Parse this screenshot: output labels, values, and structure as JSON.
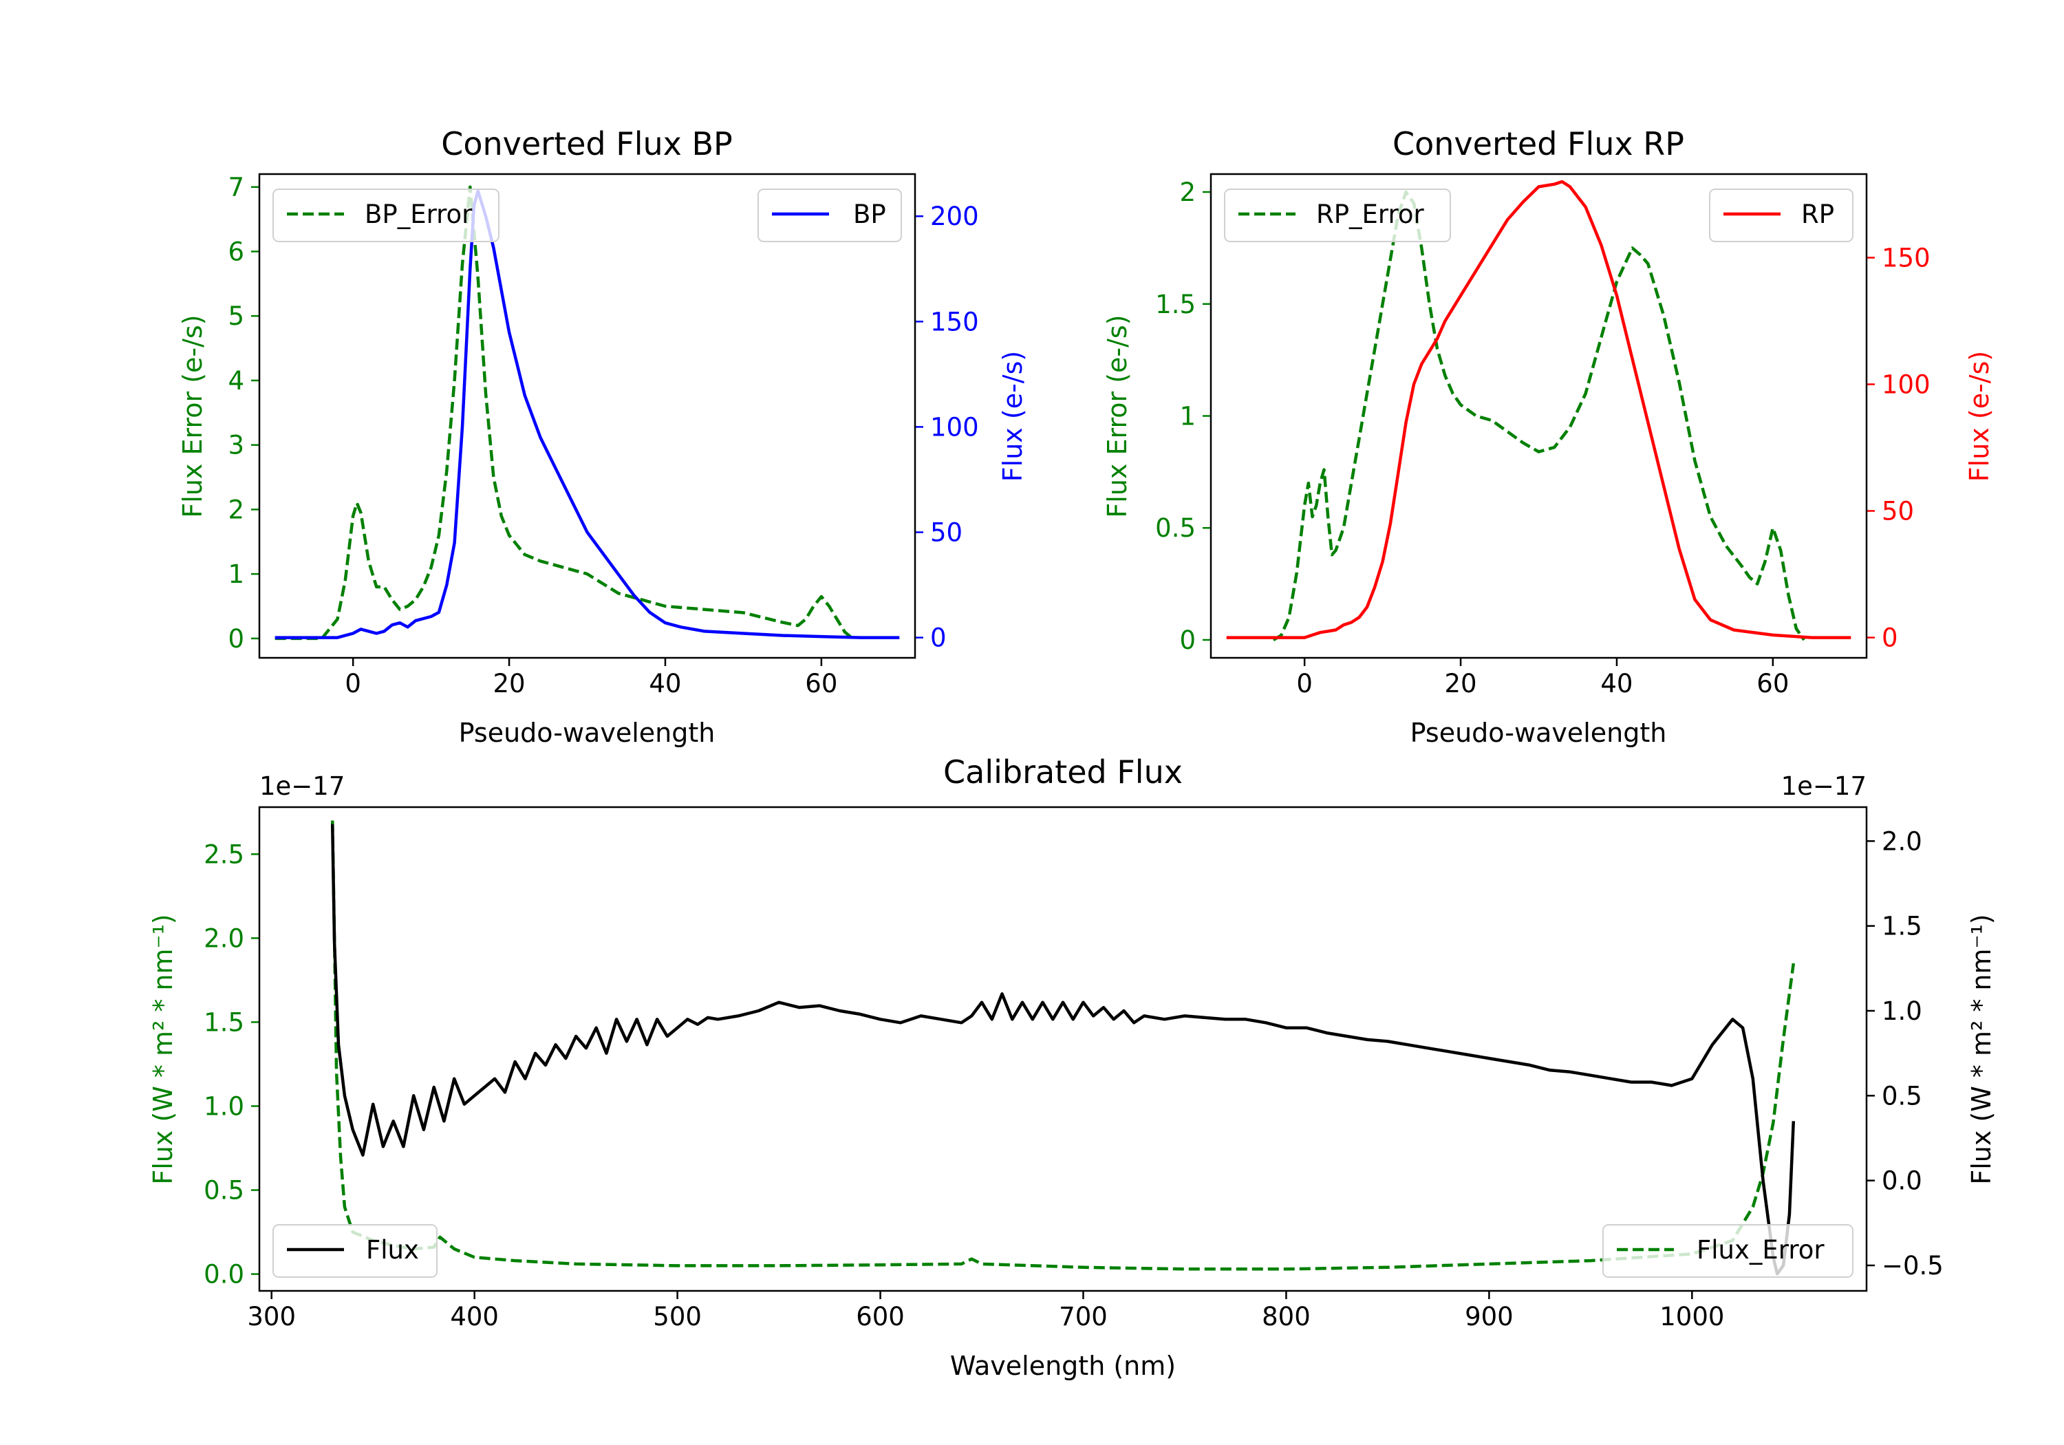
{
  "chart_data": [
    {
      "id": "bp",
      "type": "line",
      "title": "Converted Flux BP",
      "xlabel": "Pseudo-wavelength",
      "ylabel_left": "Flux Error (e-/s)",
      "ylabel_right": "Flux (e-/s)",
      "xlim": [
        -12,
        72
      ],
      "ylim_left": [
        -0.3,
        7.2
      ],
      "ylim_right": [
        -9.6,
        220
      ],
      "xticks": [
        0,
        20,
        40,
        60
      ],
      "yticks_left": [
        0,
        1,
        2,
        3,
        4,
        5,
        6,
        7
      ],
      "yticks_right": [
        0,
        50,
        100,
        150,
        200
      ],
      "left_color": "#008000",
      "right_color": "#0000ff",
      "legend_left": {
        "label": "BP_Error",
        "location": "upper-left"
      },
      "legend_right": {
        "label": "BP",
        "location": "upper-right"
      },
      "series": [
        {
          "name": "BP_Error",
          "axis": "left",
          "style": "dashed",
          "color": "#008000",
          "x": [
            -10,
            -4,
            -2,
            -1,
            0,
            0.5,
            1,
            2,
            3,
            4,
            5,
            6,
            7,
            8,
            9,
            10,
            11,
            12,
            13,
            14,
            15,
            16,
            17,
            18,
            19,
            20,
            21,
            22,
            24,
            27,
            30,
            32,
            34,
            37,
            40,
            45,
            50,
            55,
            57,
            58,
            59,
            60,
            61,
            62,
            63,
            64
          ],
          "y": [
            0,
            0,
            0.3,
            0.9,
            1.9,
            2.1,
            1.95,
            1.2,
            0.8,
            0.8,
            0.6,
            0.45,
            0.5,
            0.6,
            0.8,
            1.1,
            1.6,
            2.6,
            4.0,
            5.8,
            7.0,
            5.6,
            3.8,
            2.5,
            1.9,
            1.6,
            1.45,
            1.3,
            1.2,
            1.1,
            1.0,
            0.85,
            0.7,
            0.6,
            0.5,
            0.45,
            0.4,
            0.25,
            0.2,
            0.3,
            0.5,
            0.65,
            0.5,
            0.3,
            0.1,
            0
          ]
        },
        {
          "name": "BP",
          "axis": "right",
          "style": "solid",
          "color": "#0000ff",
          "x": [
            -10,
            -2,
            0,
            1,
            2,
            3,
            4,
            5,
            6,
            7,
            8,
            9,
            10,
            11,
            12,
            13,
            14,
            15,
            15.5,
            16,
            17,
            18,
            19,
            20,
            21,
            22,
            24,
            26,
            28,
            30,
            32,
            34,
            36,
            38,
            40,
            42,
            45,
            50,
            55,
            60,
            65,
            70
          ],
          "y": [
            0,
            0,
            2,
            4,
            3,
            2,
            3,
            6,
            7,
            5,
            8,
            9,
            10,
            12,
            25,
            45,
            100,
            175,
            205,
            212,
            200,
            185,
            165,
            145,
            130,
            115,
            95,
            80,
            65,
            50,
            40,
            30,
            20,
            12,
            7,
            5,
            3,
            2,
            1,
            0.5,
            0,
            0
          ]
        }
      ]
    },
    {
      "id": "rp",
      "type": "line",
      "title": "Converted Flux RP",
      "xlabel": "Pseudo-wavelength",
      "ylabel_left": "Flux Error (e-/s)",
      "ylabel_right": "Flux (e-/s)",
      "xlim": [
        -12,
        72
      ],
      "ylim_left": [
        -0.08,
        2.08
      ],
      "ylim_right": [
        -8,
        183
      ],
      "xticks": [
        0,
        20,
        40,
        60
      ],
      "yticks_left": [
        0.0,
        0.5,
        1.0,
        1.5,
        2.0
      ],
      "yticks_right": [
        0,
        50,
        100,
        150
      ],
      "left_color": "#008000",
      "right_color": "#ff0000",
      "legend_left": {
        "label": "RP_Error",
        "location": "upper-left"
      },
      "legend_right": {
        "label": "RP",
        "location": "upper-right"
      },
      "series": [
        {
          "name": "RP_Error",
          "axis": "left",
          "style": "dashed",
          "color": "#008000",
          "x": [
            -4,
            -3,
            -2,
            -1,
            0,
            0.5,
            1,
            1.5,
            2,
            2.5,
            3,
            3.5,
            4,
            5,
            6,
            7,
            8,
            9,
            10,
            11,
            12,
            13,
            14,
            15,
            16,
            17,
            18,
            19,
            20,
            22,
            24,
            26,
            28,
            30,
            32,
            34,
            36,
            38,
            40,
            42,
            43,
            44,
            46,
            48,
            50,
            52,
            54,
            56,
            57,
            58,
            59,
            60,
            61,
            62,
            63,
            64
          ],
          "y": [
            0,
            0.02,
            0.1,
            0.3,
            0.6,
            0.7,
            0.55,
            0.6,
            0.7,
            0.76,
            0.55,
            0.38,
            0.4,
            0.5,
            0.7,
            0.9,
            1.1,
            1.3,
            1.5,
            1.7,
            1.9,
            2.0,
            1.95,
            1.75,
            1.5,
            1.3,
            1.18,
            1.1,
            1.05,
            1.0,
            0.98,
            0.93,
            0.88,
            0.84,
            0.86,
            0.95,
            1.1,
            1.35,
            1.6,
            1.75,
            1.72,
            1.68,
            1.45,
            1.15,
            0.8,
            0.55,
            0.42,
            0.33,
            0.28,
            0.25,
            0.35,
            0.5,
            0.4,
            0.2,
            0.05,
            0
          ]
        },
        {
          "name": "RP",
          "axis": "right",
          "style": "solid",
          "color": "#ff0000",
          "x": [
            -10,
            0,
            1,
            2,
            3,
            4,
            5,
            6,
            7,
            8,
            9,
            10,
            11,
            12,
            13,
            14,
            15,
            16,
            17,
            18,
            19,
            20,
            22,
            24,
            26,
            28,
            30,
            32,
            33,
            34,
            36,
            38,
            40,
            42,
            44,
            46,
            48,
            50,
            52,
            55,
            60,
            65,
            70
          ],
          "y": [
            0,
            0,
            1,
            2,
            2.5,
            3,
            5,
            6,
            8,
            12,
            20,
            30,
            45,
            65,
            85,
            100,
            108,
            113,
            118,
            125,
            130,
            135,
            145,
            155,
            165,
            172,
            178,
            179,
            180,
            178,
            170,
            155,
            135,
            110,
            85,
            60,
            35,
            15,
            7,
            3,
            1,
            0,
            0
          ]
        }
      ]
    },
    {
      "id": "calibrated",
      "type": "line",
      "title": "Calibrated Flux",
      "xlabel": "Wavelength (nm)",
      "ylabel_left": "Flux (W * m² * nm⁻¹)",
      "ylabel_right": "Flux (W * m² * nm⁻¹)",
      "offset_left": "1e−17",
      "offset_right": "1e−17",
      "xlim": [
        294,
        1086
      ],
      "ylim_left": [
        -0.1,
        2.78
      ],
      "ylim_right": [
        -0.65,
        2.2
      ],
      "xticks": [
        300,
        400,
        500,
        600,
        700,
        800,
        900,
        1000
      ],
      "yticks_left": [
        0.0,
        0.5,
        1.0,
        1.5,
        2.0,
        2.5
      ],
      "ytick_labels_left": [
        "0.0",
        "0.5",
        "1.0",
        "1.5",
        "2.0",
        "2.5"
      ],
      "yticks_right": [
        -0.5,
        0.0,
        0.5,
        1.0,
        1.5,
        2.0
      ],
      "ytick_labels_right": [
        "−0.5",
        "0.0",
        "0.5",
        "1.0",
        "1.5",
        "2.0"
      ],
      "left_color": "#008000",
      "right_color": "#000000",
      "legend_left": {
        "label": "Flux",
        "location": "lower-left"
      },
      "legend_right": {
        "label": "Flux_Error",
        "location": "lower-right"
      },
      "series": [
        {
          "name": "Flux_Error",
          "axis": "left",
          "style": "dashed",
          "color": "#008000",
          "x": [
            330,
            331,
            332,
            334,
            336,
            340,
            350,
            360,
            370,
            380,
            383,
            390,
            400,
            420,
            450,
            500,
            550,
            600,
            640,
            645,
            650,
            700,
            750,
            800,
            850,
            900,
            950,
            1000,
            1020,
            1030,
            1035,
            1040,
            1045,
            1050
          ],
          "y": [
            2.7,
            2.0,
            1.2,
            0.7,
            0.4,
            0.25,
            0.2,
            0.17,
            0.15,
            0.16,
            0.22,
            0.15,
            0.1,
            0.08,
            0.06,
            0.05,
            0.05,
            0.055,
            0.06,
            0.09,
            0.06,
            0.04,
            0.03,
            0.03,
            0.04,
            0.06,
            0.08,
            0.12,
            0.2,
            0.4,
            0.6,
            0.9,
            1.4,
            1.85
          ]
        },
        {
          "name": "Flux",
          "axis": "right",
          "style": "solid",
          "color": "#000000",
          "x": [
            330,
            331,
            333,
            336,
            340,
            345,
            350,
            355,
            360,
            365,
            370,
            375,
            380,
            385,
            390,
            395,
            400,
            405,
            410,
            415,
            420,
            425,
            430,
            435,
            440,
            445,
            450,
            455,
            460,
            465,
            470,
            475,
            480,
            485,
            490,
            495,
            500,
            505,
            510,
            515,
            520,
            530,
            540,
            550,
            560,
            570,
            580,
            590,
            600,
            610,
            620,
            630,
            640,
            645,
            650,
            655,
            660,
            665,
            670,
            675,
            680,
            685,
            690,
            695,
            700,
            705,
            710,
            715,
            720,
            725,
            730,
            740,
            750,
            760,
            770,
            780,
            790,
            800,
            810,
            820,
            830,
            840,
            850,
            860,
            870,
            880,
            890,
            900,
            910,
            920,
            930,
            940,
            950,
            960,
            970,
            980,
            990,
            1000,
            1010,
            1020,
            1025,
            1030,
            1035,
            1040,
            1042,
            1045,
            1048,
            1050
          ],
          "y": [
            2.1,
            1.4,
            0.8,
            0.5,
            0.3,
            0.15,
            0.45,
            0.2,
            0.35,
            0.2,
            0.5,
            0.3,
            0.55,
            0.35,
            0.6,
            0.45,
            0.5,
            0.55,
            0.6,
            0.52,
            0.7,
            0.6,
            0.75,
            0.68,
            0.8,
            0.72,
            0.85,
            0.78,
            0.9,
            0.75,
            0.95,
            0.82,
            0.95,
            0.8,
            0.95,
            0.85,
            0.9,
            0.95,
            0.92,
            0.96,
            0.95,
            0.97,
            1.0,
            1.05,
            1.02,
            1.03,
            1.0,
            0.98,
            0.95,
            0.93,
            0.97,
            0.95,
            0.93,
            0.97,
            1.05,
            0.95,
            1.1,
            0.95,
            1.05,
            0.95,
            1.05,
            0.95,
            1.05,
            0.95,
            1.05,
            0.97,
            1.02,
            0.95,
            1.0,
            0.93,
            0.97,
            0.95,
            0.97,
            0.96,
            0.95,
            0.95,
            0.93,
            0.9,
            0.9,
            0.87,
            0.85,
            0.83,
            0.82,
            0.8,
            0.78,
            0.76,
            0.74,
            0.72,
            0.7,
            0.68,
            0.65,
            0.64,
            0.62,
            0.6,
            0.58,
            0.58,
            0.56,
            0.6,
            0.8,
            0.95,
            0.9,
            0.6,
            0.0,
            -0.45,
            -0.55,
            -0.5,
            -0.2,
            0.35
          ]
        }
      ]
    }
  ]
}
